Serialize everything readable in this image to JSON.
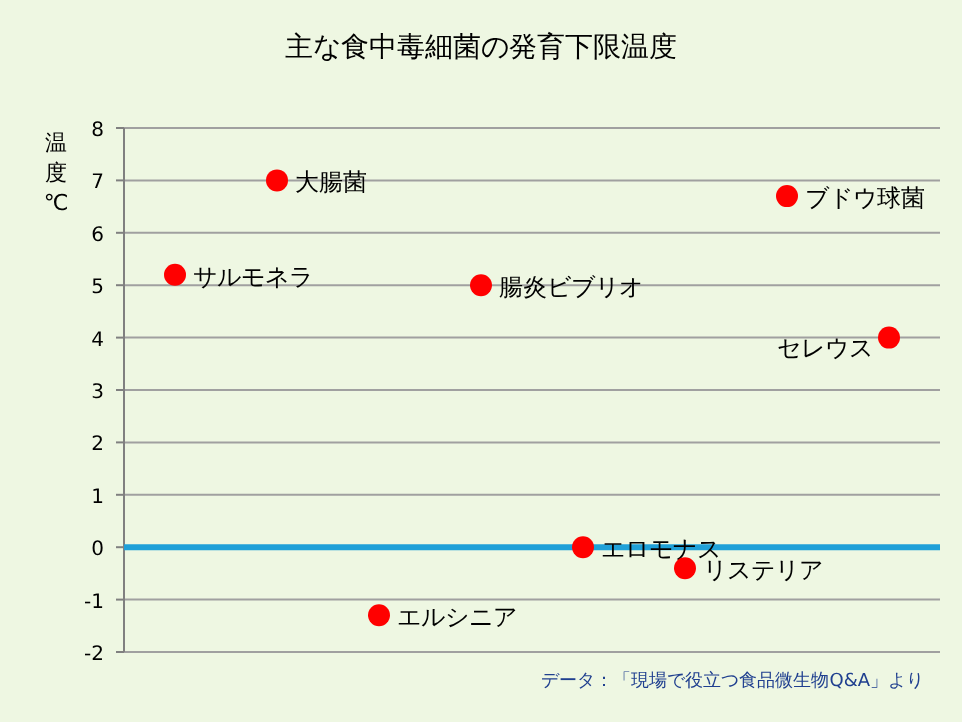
{
  "chart_data": {
    "type": "scatter",
    "title": "主な食中毒細菌の発育下限温度",
    "ylabel": "温度℃",
    "categories": [
      null,
      null,
      null,
      null,
      null,
      null,
      null,
      null
    ],
    "series": [
      {
        "color": "#ff0000",
        "values": [
          5.2,
          7,
          -1.3,
          5,
          0,
          -0.4,
          6.7,
          4
        ],
        "value_labels": [
          "サルモネラ",
          "大腸菌",
          "エルシニア",
          "腸炎ビブリオ",
          "エロモナス",
          "リステリア",
          "ブドウ球菌",
          "セレウス"
        ]
      }
    ],
    "ylim": [
      -2,
      8
    ],
    "yticks": [
      -2,
      -1,
      0,
      1,
      2,
      3,
      4,
      5,
      6,
      7,
      8
    ],
    "grid": "y",
    "marker": "circle",
    "ref_lines": [
      {
        "axis": "y",
        "value": 0,
        "color": "#1fa0d8"
      }
    ],
    "annotations": [
      "データ：「現場で役立つ食品微生物Q&A」より"
    ]
  }
}
